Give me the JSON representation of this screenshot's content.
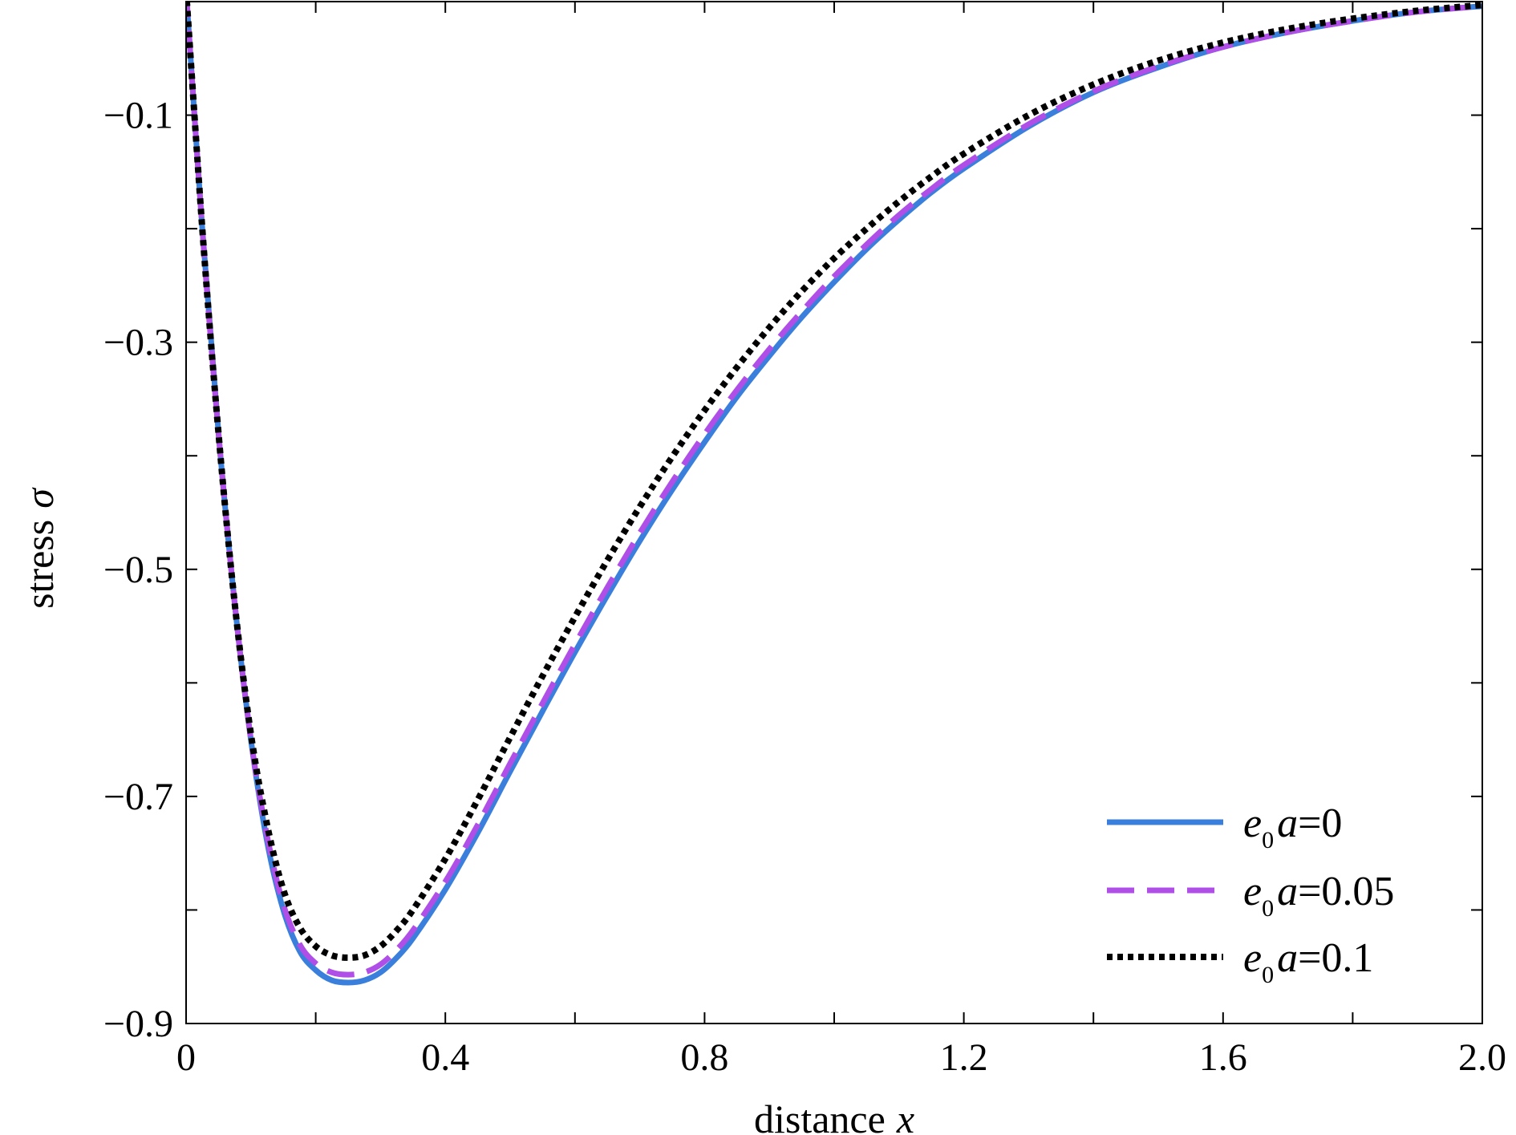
{
  "chart_data": {
    "type": "line",
    "xlabel": "distance",
    "xlabel_var": "x",
    "ylabel": "stress",
    "ylabel_var": "σ",
    "xlim": [
      0,
      2.0
    ],
    "ylim": [
      -0.9,
      0.0
    ],
    "x_ticks": [
      0,
      0.2,
      0.4,
      0.6,
      0.8,
      1.0,
      1.2,
      1.4,
      1.6,
      1.8,
      2.0
    ],
    "x_tick_labels": [
      "0",
      "",
      "0.4",
      "",
      "0.8",
      "",
      "1.2",
      "",
      "1.6",
      "",
      "2.0"
    ],
    "y_ticks": [
      -0.9,
      -0.8,
      -0.7,
      -0.6,
      -0.5,
      -0.4,
      -0.3,
      -0.2,
      -0.1
    ],
    "y_tick_labels": [
      "−0.9",
      "",
      "−0.7",
      "",
      "−0.5",
      "",
      "−0.3",
      "",
      "−0.1"
    ],
    "grid": false,
    "legend_position": "bottom-right",
    "x": [
      0,
      0.025,
      0.05,
      0.075,
      0.1,
      0.125,
      0.15,
      0.175,
      0.2,
      0.225,
      0.25,
      0.275,
      0.3,
      0.325,
      0.35,
      0.4,
      0.45,
      0.5,
      0.55,
      0.6,
      0.65,
      0.7,
      0.75,
      0.8,
      0.85,
      0.9,
      0.95,
      1.0,
      1.05,
      1.1,
      1.15,
      1.2,
      1.3,
      1.4,
      1.5,
      1.6,
      1.7,
      1.8,
      1.9,
      2.0
    ],
    "series": [
      {
        "name": "e0a=0",
        "label_main": "e",
        "label_sub": "0",
        "label_rest": "a",
        "label_value": "=0",
        "color": "#3a7fdc",
        "style": "solid",
        "values": [
          0.01,
          -0.2,
          -0.38,
          -0.53,
          -0.65,
          -0.74,
          -0.8,
          -0.836,
          -0.853,
          -0.862,
          -0.864,
          -0.862,
          -0.855,
          -0.842,
          -0.825,
          -0.782,
          -0.732,
          -0.678,
          -0.625,
          -0.573,
          -0.523,
          -0.475,
          -0.43,
          -0.388,
          -0.348,
          -0.312,
          -0.278,
          -0.247,
          -0.218,
          -0.192,
          -0.168,
          -0.147,
          -0.11,
          -0.08,
          -0.058,
          -0.04,
          -0.027,
          -0.017,
          -0.009,
          -0.004
        ]
      },
      {
        "name": "e0a=0.05",
        "label_main": "e",
        "label_sub": "0",
        "label_rest": "a",
        "label_value": "=0.05",
        "color": "#b04ee8",
        "style": "dashed",
        "values": [
          0.01,
          -0.2,
          -0.38,
          -0.53,
          -0.65,
          -0.735,
          -0.795,
          -0.83,
          -0.847,
          -0.855,
          -0.857,
          -0.855,
          -0.848,
          -0.835,
          -0.818,
          -0.775,
          -0.725,
          -0.671,
          -0.618,
          -0.566,
          -0.516,
          -0.468,
          -0.423,
          -0.381,
          -0.342,
          -0.306,
          -0.273,
          -0.242,
          -0.214,
          -0.188,
          -0.165,
          -0.144,
          -0.108,
          -0.079,
          -0.057,
          -0.04,
          -0.027,
          -0.017,
          -0.009,
          -0.004
        ]
      },
      {
        "name": "e0a=0.1",
        "label_main": "e",
        "label_sub": "0",
        "label_rest": "a",
        "label_value": "=0.1",
        "color": "#000000",
        "style": "dotted",
        "values": [
          0.01,
          -0.2,
          -0.38,
          -0.53,
          -0.645,
          -0.725,
          -0.782,
          -0.815,
          -0.832,
          -0.84,
          -0.842,
          -0.84,
          -0.832,
          -0.818,
          -0.8,
          -0.755,
          -0.703,
          -0.648,
          -0.594,
          -0.542,
          -0.492,
          -0.445,
          -0.401,
          -0.36,
          -0.322,
          -0.287,
          -0.255,
          -0.226,
          -0.2,
          -0.176,
          -0.154,
          -0.134,
          -0.1,
          -0.073,
          -0.052,
          -0.036,
          -0.024,
          -0.015,
          -0.008,
          -0.003
        ]
      }
    ]
  }
}
